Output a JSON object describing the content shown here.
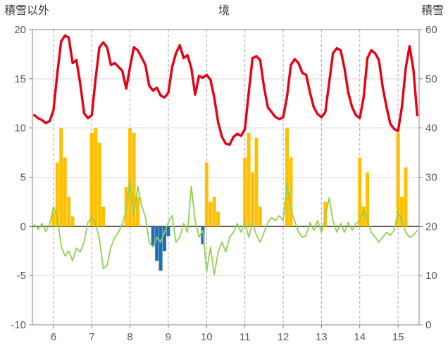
{
  "colors": {
    "red": "#e80013",
    "green": "#92d050",
    "orange": "#ffc000",
    "blue": "#1f6fb5",
    "grid_light": "#d9d9d9",
    "grid_dash": "#a6a6a6",
    "zero_line": "#595959",
    "frame": "#808080",
    "tick_text": "#595959",
    "header_text": "#3f3f3f"
  },
  "chart_data": {
    "type": "mixed",
    "title": "境",
    "left_axis": {
      "label": "積雪以外",
      "ticks": [
        -10,
        -5,
        0,
        5,
        10,
        15,
        20
      ],
      "range": [
        -10,
        20
      ]
    },
    "right_axis": {
      "label": "積雪",
      "ticks": [
        0,
        10,
        20,
        30,
        40,
        50,
        60
      ],
      "range": [
        0,
        60
      ]
    },
    "x_axis": {
      "ticks": [
        6,
        7,
        8,
        9,
        10,
        11,
        12,
        13,
        14,
        15
      ],
      "range": [
        5.45,
        15.55
      ]
    },
    "x_start": 5.5,
    "x_step": 0.1,
    "series": [
      {
        "name": "orange-bars",
        "type": "bar",
        "color": "#ffc000",
        "values": [
          0,
          0,
          0,
          0,
          0,
          1.5,
          6.5,
          10.0,
          7.0,
          3.0,
          1.0,
          0,
          0,
          0,
          0,
          9.5,
          10.0,
          8.5,
          2.0,
          0,
          0,
          0,
          0,
          0,
          4.0,
          10.0,
          9.5,
          3.0,
          0,
          0,
          0,
          0,
          0,
          0,
          0,
          0,
          0,
          0,
          0,
          0,
          0,
          0,
          0,
          0,
          0,
          6.5,
          2.5,
          3.0,
          1.5,
          0,
          0,
          0,
          0,
          0,
          0,
          7.0,
          9.5,
          5.5,
          9.0,
          2.0,
          0,
          0,
          0,
          0,
          0,
          0,
          10.0,
          7.0,
          0,
          0,
          0,
          0,
          0,
          0,
          0,
          0,
          2.5,
          0,
          0,
          0,
          0,
          0,
          0,
          0,
          0,
          7.0,
          2.0,
          5.5,
          0,
          0,
          0,
          0,
          0,
          0,
          0,
          9.5,
          3.0,
          6.0,
          0,
          0,
          0
        ]
      },
      {
        "name": "blue-bars",
        "type": "bar",
        "color": "#1f6fb5",
        "values": [
          0,
          0,
          0,
          0,
          0,
          0,
          0,
          0,
          0,
          0,
          0,
          0,
          0,
          0,
          0,
          0,
          0,
          0,
          0,
          0,
          0,
          0,
          0,
          0,
          0,
          0,
          0,
          0,
          0,
          0,
          0,
          -2.0,
          -3.5,
          -4.5,
          -2.5,
          -1.0,
          0,
          0,
          0,
          0,
          0,
          0,
          0,
          0,
          -1.8,
          0,
          0,
          0,
          0,
          0,
          0,
          0,
          0,
          0,
          0,
          0,
          0,
          0,
          0,
          0,
          0,
          0,
          0,
          0,
          0,
          0,
          0,
          0,
          0,
          0,
          0,
          0,
          0,
          0,
          0,
          0,
          0,
          0,
          0,
          0,
          0,
          0,
          0,
          0,
          0,
          0,
          0,
          0,
          0,
          0,
          0,
          0,
          0,
          0,
          0,
          0,
          0,
          0,
          0,
          0,
          0
        ]
      },
      {
        "name": "green-line",
        "type": "line",
        "color": "#92d050",
        "width": 1.8,
        "values": [
          0.2,
          -0.3,
          0.3,
          -0.5,
          0.2,
          2.0,
          1.0,
          -2.0,
          -3.0,
          -2.5,
          -3.5,
          -2.2,
          -2.6,
          -1.6,
          0.4,
          1.0,
          0.3,
          -1.2,
          -4.3,
          -4.0,
          -2.1,
          -1.1,
          -0.6,
          0.3,
          1.6,
          4.6,
          1.1,
          4.1,
          2.1,
          1.0,
          -1.6,
          -2.1,
          -1.1,
          -1.6,
          -0.6,
          0.4,
          1.1,
          -1.6,
          -1.1,
          0.3,
          -0.6,
          4.1,
          0.6,
          -1.1,
          -0.4,
          -4.6,
          -2.1,
          -4.9,
          -2.6,
          -1.6,
          -2.6,
          -1.1,
          -0.6,
          0.3,
          -0.6,
          0.4,
          -1.1,
          0.3,
          -0.9,
          -1.6,
          -0.6,
          0.4,
          0.9,
          0.6,
          1.1,
          0.6,
          4.4,
          1.6,
          0.6,
          -0.6,
          -1.1,
          -0.9,
          0.4,
          -0.4,
          0.6,
          -0.6,
          0.9,
          2.9,
          0.6,
          -0.6,
          0.3,
          -0.6,
          0.4,
          -0.4,
          0.3,
          0.6,
          1.6,
          0.6,
          -0.6,
          -1.1,
          -1.6,
          -1.1,
          -0.6,
          -0.9,
          -0.4,
          1.6,
          0.6,
          -0.6,
          -1.1,
          -0.9,
          -0.4
        ]
      },
      {
        "name": "red-line",
        "type": "line",
        "color": "#e80013",
        "width": 3.4,
        "values": [
          11.3,
          11.0,
          10.8,
          10.5,
          10.7,
          11.8,
          15.5,
          18.8,
          19.4,
          19.2,
          16.6,
          16.9,
          14.5,
          11.5,
          11.0,
          11.3,
          15.0,
          18.2,
          18.7,
          18.2,
          16.4,
          16.6,
          16.2,
          15.8,
          14.0,
          16.2,
          18.2,
          17.9,
          17.2,
          16.4,
          14.3,
          13.8,
          14.1,
          13.3,
          13.1,
          13.6,
          16.2,
          17.6,
          18.4,
          17.1,
          17.4,
          16.1,
          13.4,
          15.3,
          15.1,
          15.4,
          14.9,
          13.1,
          10.6,
          9.1,
          8.4,
          8.3,
          9.1,
          9.4,
          9.2,
          9.9,
          13.6,
          17.1,
          17.3,
          16.9,
          14.1,
          12.1,
          11.6,
          11.1,
          10.9,
          11.1,
          13.2,
          16.4,
          17.0,
          16.6,
          15.6,
          15.4,
          13.6,
          12.1,
          11.4,
          11.1,
          11.6,
          14.6,
          17.6,
          18.1,
          17.9,
          16.1,
          13.6,
          12.1,
          11.3,
          11.0,
          13.1,
          17.1,
          17.9,
          17.6,
          16.9,
          14.1,
          12.1,
          10.4,
          9.9,
          9.7,
          12.1,
          16.1,
          18.3,
          16.0,
          11.3
        ]
      }
    ]
  }
}
